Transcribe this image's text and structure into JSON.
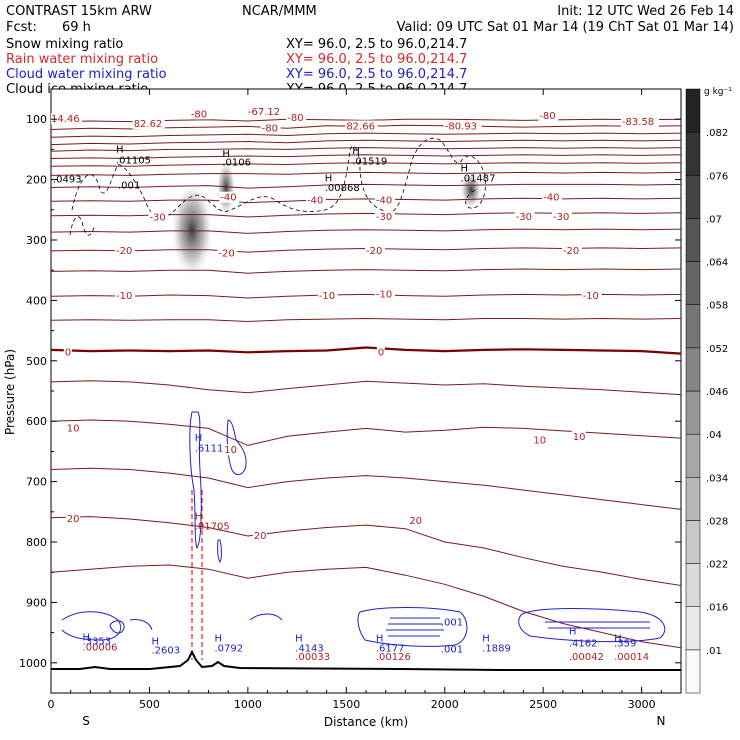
{
  "header": {
    "model": "CONTRAST 15km ARW",
    "org": "NCAR/MMM",
    "init": "Init: 12 UTC Wed 26 Feb 14",
    "fcst_label": "Fcst:",
    "fcst_value": "69 h",
    "valid": "Valid: 09 UTC Sat 01 Mar 14 (19 ChT Sat 01 Mar 14)",
    "fields": [
      {
        "name": "Snow mixing ratio",
        "xy": "XY=  96.0,  2.5 to  96.0,214.7",
        "color": "#000000"
      },
      {
        "name": "Rain water mixing ratio",
        "xy": "XY=  96.0,  2.5 to  96.0,214.7",
        "color": "#d42a2a"
      },
      {
        "name": "Cloud water mixing ratio",
        "xy": "XY=  96.0,  2.5 to  96.0,214.7",
        "color": "#2020c8"
      },
      {
        "name": "Cloud ice mixing ratio",
        "xy": "XY=  96.0,  2.5 to  96.0,214.7",
        "color": "#000000"
      }
    ]
  },
  "chart_data": {
    "type": "contour",
    "xlabel": "Distance (km)",
    "ylabel": "Pressure (hPa)",
    "xlim": [
      0,
      3200
    ],
    "ylim": [
      1050,
      50
    ],
    "x_ticks": [
      0,
      500,
      1000,
      1500,
      2000,
      2500,
      3000
    ],
    "y_ticks": [
      100,
      200,
      300,
      400,
      500,
      600,
      700,
      800,
      900,
      1000
    ],
    "x_end_labels": {
      "left": "S",
      "right": "N"
    },
    "colorbar": {
      "unit": "g kg⁻¹",
      "ticks": [
        ".01",
        ".016",
        ".022",
        ".028",
        ".034",
        ".04",
        ".046",
        ".052",
        ".058",
        ".064",
        ".07",
        ".076",
        ".082"
      ]
    },
    "temperature_contours": {
      "color": "#7a1a1a",
      "zero_color": "#7a0000",
      "levels": [
        {
          "t": -80,
          "p": [
            105,
            103,
            104,
            102,
            101,
            103,
            100,
            101,
            102,
            100,
            100,
            101,
            102,
            101,
            100,
            101,
            100
          ]
        },
        {
          "t": -75,
          "p": [
            117,
            115,
            116,
            114,
            113,
            112,
            115,
            111,
            112,
            110,
            111,
            112,
            113,
            112,
            111,
            112,
            111
          ]
        },
        {
          "t": -70,
          "p": [
            130,
            128,
            129,
            127,
            126,
            125,
            127,
            124,
            123,
            124,
            125,
            124,
            123,
            124,
            123,
            124,
            123
          ]
        },
        {
          "t": -65,
          "p": [
            142,
            140,
            141,
            139,
            138,
            137,
            139,
            136,
            135,
            136,
            137,
            136,
            135,
            136,
            135,
            136,
            135
          ]
        },
        {
          "t": -60,
          "p": [
            153,
            151,
            152,
            150,
            150,
            149,
            150,
            148,
            147,
            148,
            149,
            148,
            147,
            148,
            147,
            148,
            147
          ]
        },
        {
          "t": -55,
          "p": [
            165,
            164,
            165,
            163,
            162,
            161,
            162,
            160,
            159,
            160,
            161,
            160,
            159,
            160,
            159,
            160,
            159
          ]
        },
        {
          "t": -50,
          "p": [
            178,
            177,
            178,
            176,
            175,
            174,
            175,
            173,
            172,
            173,
            174,
            173,
            172,
            173,
            172,
            173,
            172
          ]
        },
        {
          "t": -45,
          "p": [
            193,
            192,
            193,
            191,
            190,
            190,
            191,
            189,
            188,
            189,
            190,
            189,
            188,
            189,
            188,
            189,
            188
          ]
        },
        {
          "t": -40,
          "p": [
            213,
            212,
            213,
            211,
            210,
            214,
            212,
            209,
            208,
            209,
            210,
            209,
            208,
            208,
            208,
            209,
            208
          ]
        },
        {
          "t": -35,
          "p": [
            236,
            235,
            236,
            234,
            234,
            238,
            236,
            233,
            232,
            233,
            234,
            232,
            231,
            232,
            231,
            232,
            231
          ]
        },
        {
          "t": -30,
          "p": [
            260,
            259,
            260,
            258,
            258,
            262,
            259,
            257,
            256,
            257,
            258,
            256,
            255,
            256,
            255,
            256,
            255
          ]
        },
        {
          "t": -25,
          "p": [
            287,
            286,
            287,
            285,
            285,
            289,
            286,
            284,
            283,
            284,
            285,
            283,
            282,
            283,
            282,
            283,
            282
          ]
        },
        {
          "t": -20,
          "p": [
            318,
            317,
            318,
            316,
            316,
            320,
            317,
            315,
            314,
            315,
            316,
            314,
            313,
            314,
            313,
            314,
            313
          ]
        },
        {
          "t": -15,
          "p": [
            352,
            351,
            352,
            350,
            350,
            355,
            352,
            350,
            349,
            350,
            351,
            349,
            348,
            349,
            348,
            349,
            348
          ]
        },
        {
          "t": -10,
          "p": [
            393,
            392,
            393,
            391,
            392,
            396,
            393,
            391,
            390,
            392,
            393,
            391,
            390,
            391,
            390,
            391,
            390
          ]
        },
        {
          "t": -5,
          "p": [
            433,
            432,
            433,
            432,
            432,
            435,
            432,
            431,
            430,
            431,
            432,
            430,
            430,
            431,
            430,
            431,
            430
          ]
        },
        {
          "t": 0,
          "p": [
            482,
            484,
            483,
            484,
            483,
            486,
            484,
            483,
            478,
            482,
            484,
            482,
            481,
            482,
            483,
            484,
            488
          ]
        },
        {
          "t": 5,
          "p": [
            535,
            533,
            535,
            540,
            548,
            553,
            546,
            540,
            534,
            537,
            540,
            538,
            542,
            545,
            548,
            552,
            556
          ]
        },
        {
          "t": 10,
          "p": [
            600,
            598,
            600,
            605,
            612,
            640,
            625,
            618,
            612,
            618,
            615,
            610,
            612,
            616,
            620,
            624,
            628
          ]
        },
        {
          "t": 15,
          "p": [
            680,
            678,
            680,
            686,
            694,
            710,
            700,
            694,
            690,
            694,
            700,
            706,
            714,
            722,
            730,
            738,
            746
          ]
        },
        {
          "t": 20,
          "p": [
            760,
            758,
            762,
            768,
            776,
            790,
            782,
            776,
            772,
            778,
            800,
            810,
            826,
            840,
            850,
            862,
            872
          ]
        },
        {
          "t": 25,
          "p": [
            850,
            845,
            840,
            838,
            845,
            860,
            850,
            845,
            842,
            855,
            870,
            890,
            915,
            935,
            950,
            965,
            975
          ]
        }
      ]
    },
    "contour_labels": [
      {
        "x": 0,
        "p": 100,
        "text": "14.46",
        "color": "red"
      },
      {
        "x": 420,
        "p": 108,
        "text": "82.62",
        "color": "red"
      },
      {
        "x": 710,
        "p": 92,
        "text": "-80",
        "color": "red"
      },
      {
        "x": 1000,
        "p": 88,
        "text": "-67.12",
        "color": "red"
      },
      {
        "x": 1200,
        "p": 98,
        "text": "-80",
        "color": "red"
      },
      {
        "x": 1070,
        "p": 115,
        "text": "-80",
        "color": "red"
      },
      {
        "x": 1500,
        "p": 112,
        "text": "82.66",
        "color": "red"
      },
      {
        "x": 2000,
        "p": 112,
        "text": "-80.93",
        "color": "red"
      },
      {
        "x": 2480,
        "p": 95,
        "text": "-80",
        "color": "red"
      },
      {
        "x": 2900,
        "p": 105,
        "text": "-83.58",
        "color": "red"
      },
      {
        "x": 860,
        "p": 230,
        "text": "-40",
        "color": "red"
      },
      {
        "x": 1300,
        "p": 235,
        "text": "-40",
        "color": "red"
      },
      {
        "x": 1650,
        "p": 235,
        "text": "-40",
        "color": "red"
      },
      {
        "x": 2500,
        "p": 230,
        "text": "-40",
        "color": "red"
      },
      {
        "x": 500,
        "p": 263,
        "text": "-30",
        "color": "red"
      },
      {
        "x": 1650,
        "p": 262,
        "text": "-30",
        "color": "red"
      },
      {
        "x": 2360,
        "p": 262,
        "text": "-30",
        "color": "red"
      },
      {
        "x": 2550,
        "p": 262,
        "text": "-30",
        "color": "red"
      },
      {
        "x": 330,
        "p": 318,
        "text": "-20",
        "color": "red"
      },
      {
        "x": 850,
        "p": 322,
        "text": "-20",
        "color": "red"
      },
      {
        "x": 1600,
        "p": 318,
        "text": "-20",
        "color": "red"
      },
      {
        "x": 2600,
        "p": 318,
        "text": "-20",
        "color": "red"
      },
      {
        "x": 330,
        "p": 393,
        "text": "-10",
        "color": "red"
      },
      {
        "x": 1360,
        "p": 393,
        "text": "-10",
        "color": "red"
      },
      {
        "x": 1650,
        "p": 390,
        "text": "-10",
        "color": "red"
      },
      {
        "x": 2700,
        "p": 393,
        "text": "-10",
        "color": "red"
      },
      {
        "x": 70,
        "p": 486,
        "text": "0",
        "color": "red"
      },
      {
        "x": 1660,
        "p": 486,
        "text": "0",
        "color": "red"
      },
      {
        "x": 80,
        "p": 612,
        "text": "10",
        "color": "red"
      },
      {
        "x": 880,
        "p": 648,
        "text": "10",
        "color": "red"
      },
      {
        "x": 2450,
        "p": 632,
        "text": "10",
        "color": "red"
      },
      {
        "x": 2650,
        "p": 626,
        "text": "10",
        "color": "red"
      },
      {
        "x": 80,
        "p": 762,
        "text": "20",
        "color": "red"
      },
      {
        "x": 1030,
        "p": 790,
        "text": "20",
        "color": "red"
      },
      {
        "x": 1820,
        "p": 765,
        "text": "20",
        "color": "red"
      }
    ],
    "extrema_labels": [
      {
        "x": 320,
        "p": 150,
        "text": "H",
        "color": "black"
      },
      {
        "x": 320,
        "p": 168,
        "text": ".01105",
        "color": "black"
      },
      {
        "x": 860,
        "p": 158,
        "text": "H",
        "color": "black"
      },
      {
        "x": 860,
        "p": 172,
        "text": ".0106",
        "color": "black"
      },
      {
        "x": 1520,
        "p": 153,
        "text": "H",
        "color": "black"
      },
      {
        "x": 1520,
        "p": 170,
        "text": ".01519",
        "color": "black"
      },
      {
        "x": 2070,
        "p": 182,
        "text": "H",
        "color": "black"
      },
      {
        "x": 2070,
        "p": 198,
        "text": ".01487",
        "color": "black"
      },
      {
        "x": 1380,
        "p": 198,
        "text": "H",
        "color": "black"
      },
      {
        "x": 1380,
        "p": 214,
        "text": ".00868",
        "color": "black"
      },
      {
        "x": 0,
        "p": 200,
        "text": ".0493",
        "color": "black"
      },
      {
        "x": 330,
        "p": 210,
        "text": ".001",
        "color": "black"
      },
      {
        "x": 720,
        "p": 628,
        "text": "H",
        "color": "blue"
      },
      {
        "x": 720,
        "p": 645,
        "text": ".6111",
        "color": "blue"
      },
      {
        "x": 720,
        "p": 758,
        "text": "H",
        "color": "red"
      },
      {
        "x": 720,
        "p": 774,
        "text": ".01705",
        "color": "red"
      },
      {
        "x": 150,
        "p": 958,
        "text": "H",
        "color": "blue"
      },
      {
        "x": 150,
        "p": 975,
        "text": ".00006",
        "color": "red"
      },
      {
        "x": 150,
        "p": 965,
        "text": ".3353",
        "color": "blue"
      },
      {
        "x": 500,
        "p": 965,
        "text": "H",
        "color": "blue"
      },
      {
        "x": 500,
        "p": 980,
        "text": ".2603",
        "color": "blue"
      },
      {
        "x": 820,
        "p": 960,
        "text": "H",
        "color": "blue"
      },
      {
        "x": 820,
        "p": 976,
        "text": ".0792",
        "color": "blue"
      },
      {
        "x": 1230,
        "p": 960,
        "text": "H",
        "color": "blue"
      },
      {
        "x": 1230,
        "p": 976,
        "text": ".4143",
        "color": "blue"
      },
      {
        "x": 1230,
        "p": 990,
        "text": ".00033",
        "color": "red"
      },
      {
        "x": 1640,
        "p": 960,
        "text": "H",
        "color": "blue"
      },
      {
        "x": 1640,
        "p": 976,
        "text": ".6177",
        "color": "blue"
      },
      {
        "x": 1640,
        "p": 990,
        "text": ".00126",
        "color": "red"
      },
      {
        "x": 1970,
        "p": 933,
        "text": ".001",
        "color": "blue"
      },
      {
        "x": 1970,
        "p": 978,
        "text": ".001",
        "color": "blue"
      },
      {
        "x": 2180,
        "p": 960,
        "text": "H",
        "color": "blue"
      },
      {
        "x": 2180,
        "p": 976,
        "text": ".1889",
        "color": "blue"
      },
      {
        "x": 2620,
        "p": 948,
        "text": "H",
        "color": "blue"
      },
      {
        "x": 2620,
        "p": 968,
        "text": ".4162",
        "color": "blue"
      },
      {
        "x": 2620,
        "p": 990,
        "text": ".00042",
        "color": "red"
      },
      {
        "x": 2850,
        "p": 960,
        "text": "H",
        "color": "blue"
      },
      {
        "x": 2850,
        "p": 968,
        "text": ".359",
        "color": "blue"
      },
      {
        "x": 2850,
        "p": 990,
        "text": ".00014",
        "color": "red"
      }
    ]
  }
}
